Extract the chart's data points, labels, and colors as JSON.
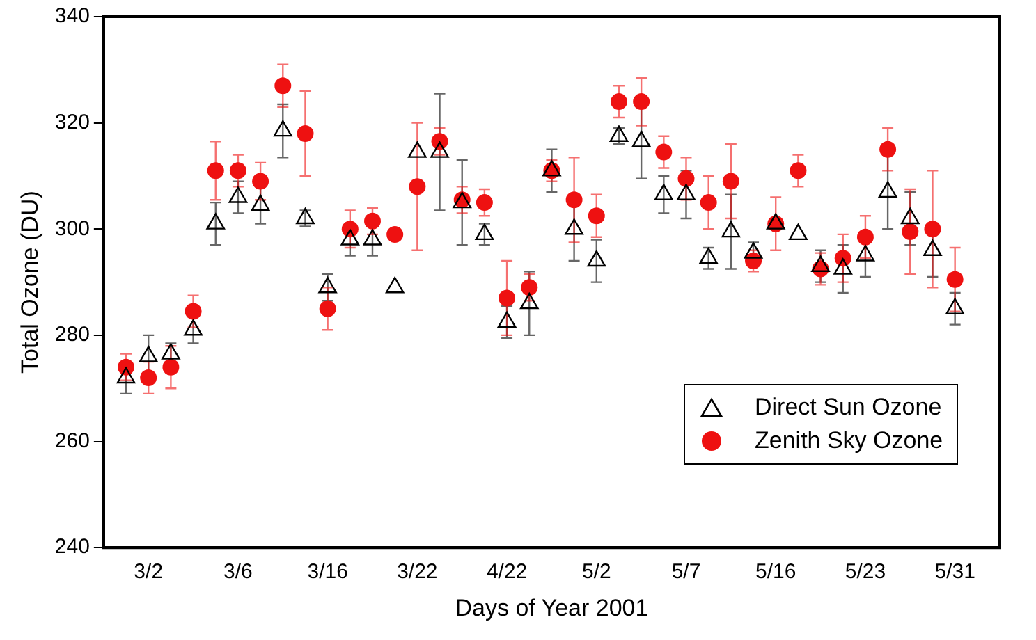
{
  "chart_data": {
    "type": "scatter",
    "xlabel": "Days of Year 2001",
    "ylabel": "Total Ozone (DU)",
    "categories": [
      null,
      null,
      "3/2",
      null,
      null,
      null,
      "3/6",
      null,
      null,
      null,
      "3/16",
      null,
      null,
      null,
      "3/22",
      null,
      null,
      null,
      "4/22",
      null,
      null,
      null,
      "5/2",
      null,
      null,
      null,
      "5/7",
      null,
      null,
      null,
      "5/16",
      null,
      null,
      null,
      "5/23",
      null,
      null,
      null,
      "5/31",
      null,
      null
    ],
    "ylim": [
      240,
      340
    ],
    "yticks": [
      240,
      260,
      280,
      300,
      320,
      340
    ],
    "grid": false,
    "legend": "bottom right",
    "series": [
      {
        "name": "Direct Sun Ozone",
        "color": "#000000",
        "marker": "triangle",
        "values": [
          null,
          272,
          276,
          276.5,
          281,
          301,
          306,
          304.5,
          318.5,
          302,
          289,
          298,
          298,
          289,
          314.5,
          314.5,
          305,
          299,
          282.5,
          286,
          311,
          300,
          294,
          317.5,
          316.5,
          306.5,
          306.5,
          294.5,
          299.5,
          295.5,
          301,
          299,
          293,
          292.5,
          295,
          307,
          302,
          296,
          285,
          null,
          null
        ],
        "errors": [
          null,
          3,
          4,
          2,
          2.5,
          4,
          3,
          3.5,
          5,
          1.5,
          2.5,
          3,
          3,
          null,
          null,
          11,
          8,
          2,
          3,
          6,
          4,
          6,
          4,
          1.5,
          7,
          3.5,
          4.5,
          2,
          7,
          2,
          null,
          null,
          3,
          4.5,
          4,
          7,
          5,
          5,
          3,
          null,
          null
        ]
      },
      {
        "name": "Zenith Sky Ozone",
        "color": "#ee1111",
        "marker": "circle",
        "values": [
          null,
          274,
          272,
          274,
          284.5,
          311,
          311,
          309,
          327,
          318,
          285,
          300,
          301.5,
          299,
          308,
          316.5,
          305.5,
          305,
          287,
          289,
          311,
          305.5,
          302.5,
          324,
          324,
          314.5,
          309.5,
          305,
          309,
          294,
          301,
          311,
          292.5,
          294.5,
          298.5,
          315,
          299.5,
          300,
          290.5,
          null,
          null
        ],
        "errors": [
          null,
          2.5,
          3,
          4,
          3,
          5.5,
          3,
          3.5,
          4,
          8,
          4,
          3.5,
          2.5,
          1,
          12,
          2.5,
          2.5,
          2.5,
          7,
          2.5,
          2,
          8,
          4,
          3,
          4.5,
          3,
          4,
          5,
          7,
          2,
          5,
          3,
          3,
          4.5,
          4,
          4,
          8,
          11,
          6,
          null,
          null
        ]
      }
    ]
  }
}
